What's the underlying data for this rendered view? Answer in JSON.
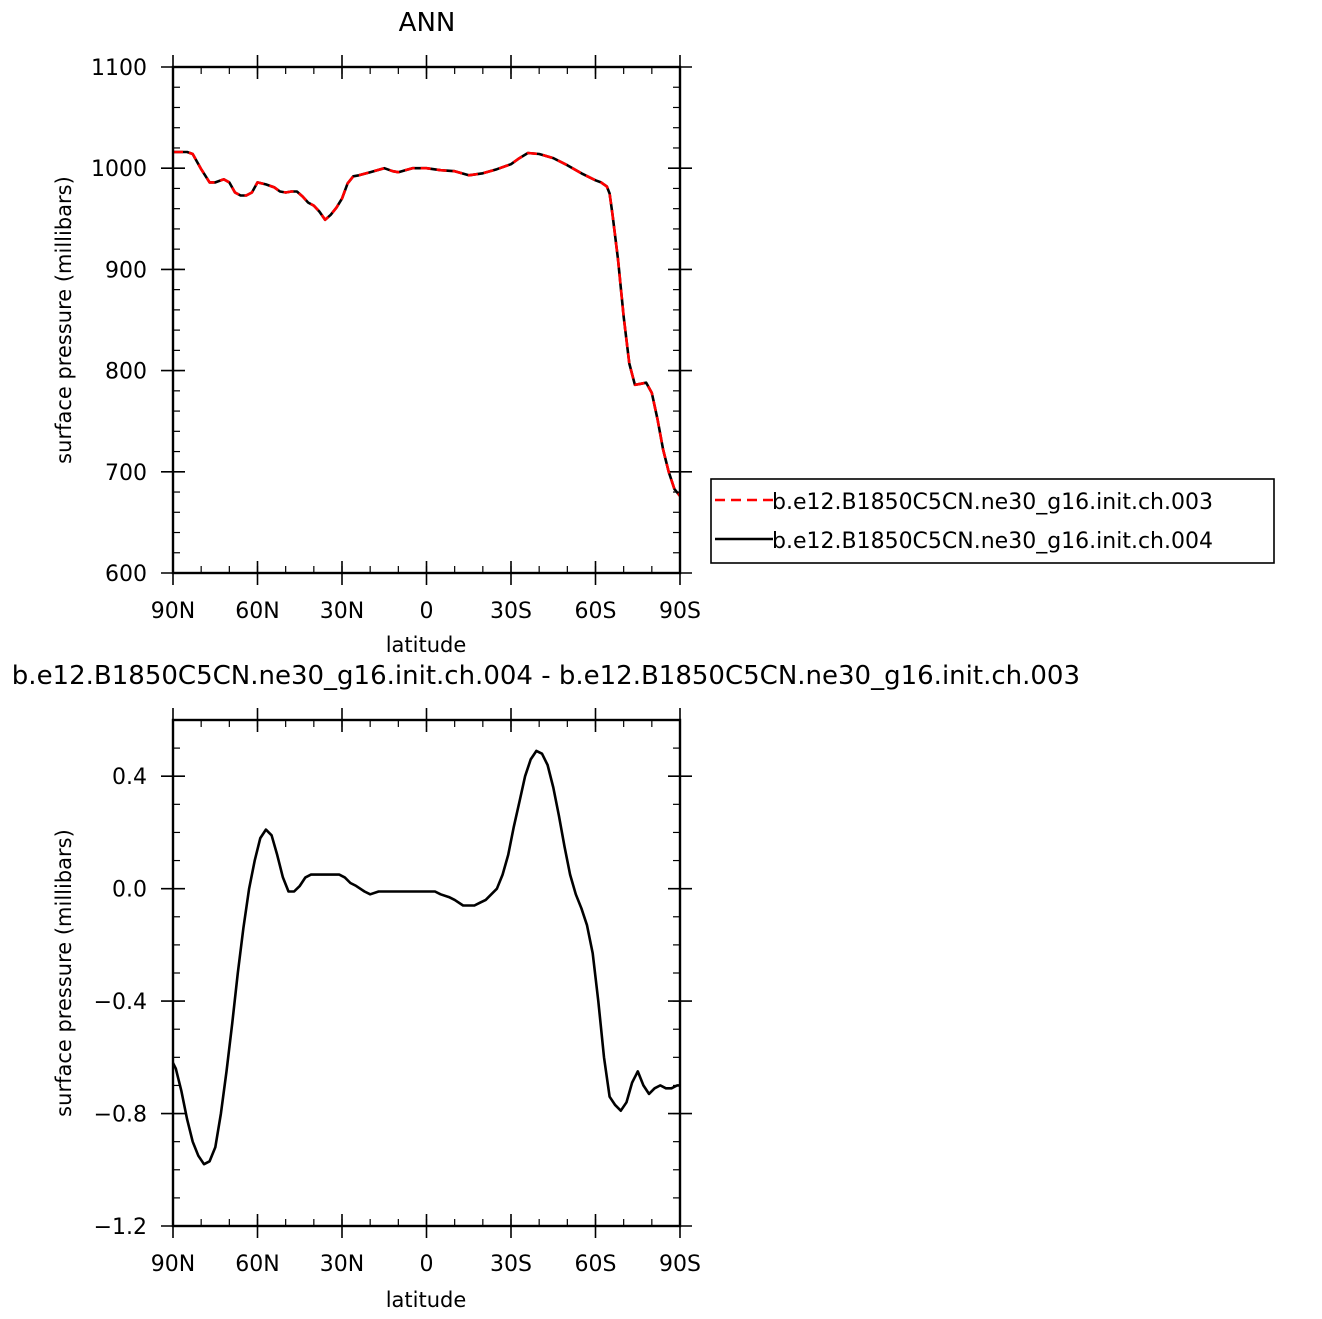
{
  "chart_data": [
    {
      "type": "line",
      "title": "ANN",
      "xlabel": "latitude",
      "ylabel": "surface pressure (millibars)",
      "xlim": [
        90,
        -90
      ],
      "ylim": [
        600,
        1100
      ],
      "x_ticks": [
        90,
        60,
        30,
        0,
        -30,
        -60,
        -90
      ],
      "x_tick_labels": [
        "90N",
        "60N",
        "30N",
        "0",
        "30S",
        "60S",
        "90S"
      ],
      "y_ticks": [
        600,
        700,
        800,
        900,
        1000,
        1100
      ],
      "y_tick_labels": [
        "600",
        "700",
        "800",
        "900",
        "1000",
        "1100"
      ],
      "legend_position": "right",
      "x": [
        90,
        85,
        83,
        80,
        77,
        75,
        72,
        70,
        68,
        66,
        64,
        62,
        60,
        57,
        54,
        52,
        50,
        48,
        46,
        44,
        42,
        40,
        38,
        36,
        34,
        32,
        30,
        28,
        26,
        24,
        20,
        15,
        12,
        10,
        5,
        0,
        -5,
        -10,
        -15,
        -20,
        -25,
        -30,
        -33,
        -36,
        -40,
        -45,
        -50,
        -55,
        -60,
        -62,
        -64,
        -65,
        -66,
        -68,
        -70,
        -72,
        -74,
        -76,
        -78,
        -80,
        -82,
        -84,
        -86,
        -88,
        -90
      ],
      "series": [
        {
          "name": "b.e12.B1850C5CN.ne30_g16.init.ch.003",
          "color": "#ff0000",
          "dash": "dashed",
          "values": [
            1016,
            1016,
            1014,
            999,
            986,
            986,
            989,
            986,
            976,
            973,
            973,
            976,
            986,
            984,
            981,
            977,
            976,
            977,
            977,
            972,
            966,
            963,
            957,
            949,
            954,
            961,
            970,
            985,
            992,
            993,
            996,
            1000,
            997,
            996,
            1000,
            1000,
            998,
            997,
            993,
            995,
            999,
            1004,
            1010,
            1015,
            1014,
            1010,
            1003,
            995,
            988,
            986,
            982,
            975,
            955,
            910,
            853,
            807,
            786,
            787,
            788,
            778,
            752,
            722,
            700,
            683,
            676
          ]
        },
        {
          "name": "b.e12.B1850C5CN.ne30_g16.init.ch.004",
          "color": "#000000",
          "dash": "solid",
          "values": [
            1016,
            1016,
            1014,
            999,
            986,
            986,
            989,
            986,
            976,
            973,
            973,
            976,
            986,
            984,
            981,
            977,
            976,
            977,
            977,
            972,
            966,
            963,
            957,
            949,
            954,
            961,
            970,
            985,
            992,
            993,
            996,
            1000,
            997,
            996,
            1000,
            1000,
            998,
            997,
            993,
            995,
            999,
            1004,
            1010,
            1015,
            1014,
            1010,
            1003,
            995,
            988,
            986,
            982,
            975,
            955,
            910,
            853,
            807,
            786,
            787,
            788,
            778,
            752,
            722,
            700,
            683,
            676
          ]
        }
      ]
    },
    {
      "type": "line",
      "title": "b.e12.B1850C5CN.ne30_g16.init.ch.004 - b.e12.B1850C5CN.ne30_g16.init.ch.003",
      "xlabel": "latitude",
      "ylabel": "surface pressure (millibars)",
      "xlim": [
        90,
        -90
      ],
      "ylim": [
        -1.2,
        0.6
      ],
      "x_ticks": [
        90,
        60,
        30,
        0,
        -30,
        -60,
        -90
      ],
      "x_tick_labels": [
        "90N",
        "60N",
        "30N",
        "0",
        "30S",
        "60S",
        "90S"
      ],
      "y_ticks": [
        -1.2,
        -0.8,
        -0.4,
        0.0,
        0.4
      ],
      "y_tick_labels": [
        "−1.2",
        "−0.8",
        "−0.4",
        "0.0",
        "0.4"
      ],
      "x": [
        90,
        89,
        87,
        85,
        83,
        81,
        79,
        77,
        75,
        73,
        71,
        69,
        67,
        65,
        63,
        61,
        59,
        57,
        55,
        53,
        51,
        49,
        47,
        45,
        43,
        41,
        39,
        37,
        35,
        33,
        31,
        29,
        27,
        25,
        22,
        20,
        17,
        15,
        12,
        10,
        7,
        5,
        3,
        0,
        -3,
        -5,
        -8,
        -10,
        -13,
        -15,
        -17,
        -19,
        -21,
        -23,
        -25,
        -27,
        -29,
        -31,
        -33,
        -35,
        -37,
        -39,
        -41,
        -43,
        -45,
        -47,
        -49,
        -51,
        -53,
        -55,
        -57,
        -59,
        -61,
        -63,
        -65,
        -67,
        -69,
        -71,
        -73,
        -75,
        -77,
        -79,
        -81,
        -83,
        -85,
        -87,
        -89,
        -90
      ],
      "series": [
        {
          "name": "",
          "color": "#000000",
          "dash": "solid",
          "values": [
            -0.62,
            -0.64,
            -0.72,
            -0.82,
            -0.9,
            -0.95,
            -0.98,
            -0.97,
            -0.92,
            -0.8,
            -0.65,
            -0.48,
            -0.3,
            -0.14,
            0.0,
            0.1,
            0.18,
            0.21,
            0.19,
            0.12,
            0.04,
            -0.01,
            -0.01,
            0.01,
            0.04,
            0.05,
            0.05,
            0.05,
            0.05,
            0.05,
            0.05,
            0.04,
            0.02,
            0.01,
            -0.01,
            -0.02,
            -0.01,
            -0.01,
            -0.01,
            -0.01,
            -0.01,
            -0.01,
            -0.01,
            -0.01,
            -0.01,
            -0.02,
            -0.03,
            -0.04,
            -0.06,
            -0.06,
            -0.06,
            -0.05,
            -0.04,
            -0.02,
            0.0,
            0.05,
            0.12,
            0.22,
            0.31,
            0.4,
            0.46,
            0.49,
            0.48,
            0.44,
            0.36,
            0.26,
            0.15,
            0.05,
            -0.02,
            -0.07,
            -0.13,
            -0.23,
            -0.4,
            -0.6,
            -0.74,
            -0.77,
            -0.79,
            -0.76,
            -0.69,
            -0.65,
            -0.7,
            -0.73,
            -0.71,
            -0.7,
            -0.71,
            -0.71,
            -0.7,
            -0.7
          ]
        }
      ]
    }
  ]
}
